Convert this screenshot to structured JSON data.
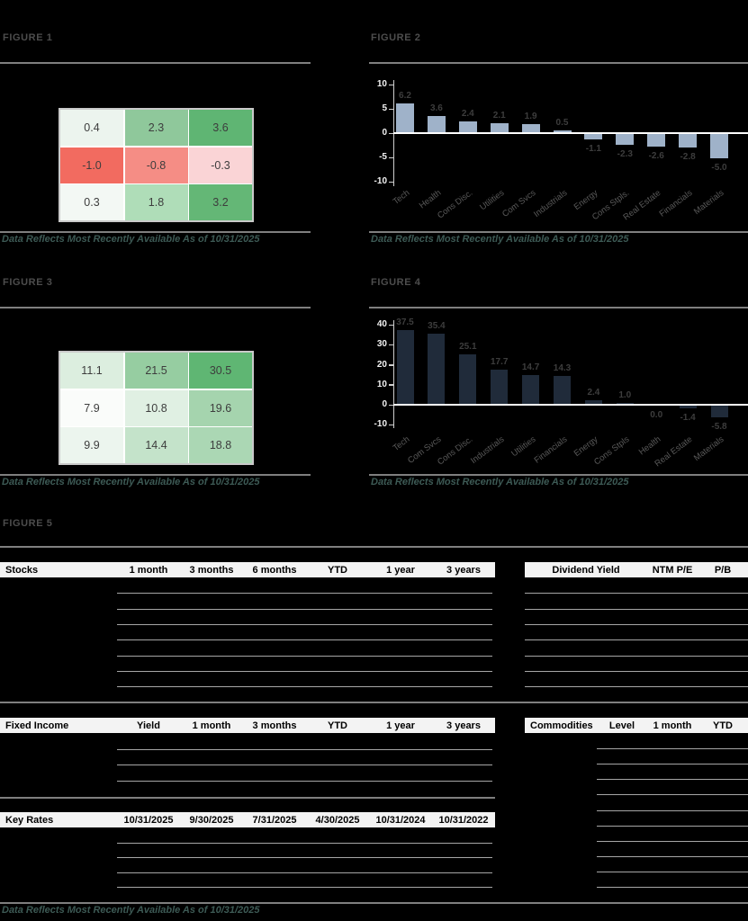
{
  "page": {
    "background": "#000000"
  },
  "figures": {
    "fig1": {
      "title": "FIGURE 1",
      "footnote": "Data Reflects Most Recently Available As of 10/31/2025"
    },
    "fig2": {
      "title": "FIGURE 2",
      "footnote": "Data Reflects Most Recently Available As of 10/31/2025"
    },
    "fig3": {
      "title": "FIGURE 3",
      "footnote": "Data Reflects Most Recently Available As of 10/31/2025"
    },
    "fig4": {
      "title": "FIGURE 4",
      "footnote": "Data Reflects Most Recently Available As of 10/31/2025"
    },
    "fig5": {
      "title": "FIGURE 5",
      "footnote": "Data Reflects Most Recently Available As of 10/31/2025"
    }
  },
  "chart_data": [
    {
      "id": "fig1_heatmap",
      "type": "heatmap",
      "title": "FIGURE 1",
      "rows": [
        [
          "0.4",
          "2.3",
          "3.6"
        ],
        [
          "-1.0",
          "-0.8",
          "-0.3"
        ],
        [
          "0.3",
          "1.8",
          "3.2"
        ]
      ],
      "cell_colors": [
        [
          "#ECF4EE",
          "#8FC89B",
          "#5FB573"
        ],
        [
          "#F26B60",
          "#F58D85",
          "#FAD4D6"
        ],
        [
          "#F3F8F4",
          "#AFDDB8",
          "#64B776"
        ]
      ]
    },
    {
      "id": "fig2_bar",
      "type": "bar",
      "title": "FIGURE 2",
      "categories": [
        "Tech",
        "Health",
        "Cons Disc.",
        "Utilities",
        "Com Svcs",
        "Industrials",
        "Energy",
        "Cons Stpls.",
        "Real Estate",
        "Financials",
        "Materials"
      ],
      "values": [
        6.2,
        3.6,
        2.4,
        2.1,
        1.9,
        0.5,
        -1.1,
        -2.3,
        -2.6,
        -2.8,
        -5.0
      ],
      "ylim": [
        -10,
        10
      ],
      "yticks": [
        10,
        5,
        0,
        -5,
        -10
      ],
      "bar_color": "#9FB2C9",
      "grid": false,
      "legend": "none"
    },
    {
      "id": "fig3_heatmap",
      "type": "heatmap",
      "title": "FIGURE 3",
      "rows": [
        [
          "11.1",
          "21.5",
          "30.5"
        ],
        [
          "7.9",
          "10.8",
          "19.6"
        ],
        [
          "9.9",
          "14.4",
          "18.8"
        ]
      ],
      "cell_colors": [
        [
          "#DCEEDF",
          "#96CDA1",
          "#5FB673"
        ],
        [
          "#FAFCFA",
          "#E0F0E3",
          "#A5D4AE"
        ],
        [
          "#ECF5EE",
          "#C4E3CA",
          "#ABD7B4"
        ]
      ]
    },
    {
      "id": "fig4_bar",
      "type": "bar",
      "title": "FIGURE 4",
      "categories": [
        "Tech",
        "Com Svcs",
        "Cons Disc.",
        "Industrials",
        "Utilities",
        "Financials",
        "Energy",
        "Cons Stpls",
        "Health",
        "Real Estate",
        "Materials"
      ],
      "values": [
        37.5,
        35.4,
        25.1,
        17.7,
        14.7,
        14.3,
        2.4,
        1.0,
        0.0,
        -1.4,
        -5.8
      ],
      "ylim": [
        -10,
        40
      ],
      "yticks": [
        40,
        30,
        20,
        10,
        0,
        -10
      ],
      "bar_color": "#202B3A",
      "grid": false,
      "legend": "none"
    }
  ],
  "tables": {
    "stocks": {
      "header": [
        "Stocks",
        "1 month",
        "3 months",
        "6 months",
        "YTD",
        "1 year",
        "3 years"
      ],
      "visible_body_rows": 8
    },
    "dividend": {
      "header": [
        "Dividend Yield",
        "NTM P/E",
        "P/B"
      ],
      "visible_body_rows": 8
    },
    "fixed_income": {
      "header": [
        "Fixed Income",
        "Yield",
        "1 month",
        "3 months",
        "YTD",
        "1 year",
        "3 years"
      ],
      "visible_body_rows": 4
    },
    "commodities": {
      "header": [
        "Commodities",
        "Level",
        "1 month",
        "YTD"
      ],
      "visible_body_rows": 11
    },
    "key_rates": {
      "header": [
        "Key Rates",
        "10/31/2025",
        "9/30/2025",
        "7/31/2025",
        "4/30/2025",
        "10/31/2024",
        "10/31/2022"
      ],
      "visible_body_rows": 5
    }
  },
  "colors": {
    "figure_title": "#4D4D4D",
    "footnote": "#3D5A55",
    "section_rule": "#7F7F7F",
    "table_row_line": "#A6A6A6",
    "table_header_bg": "#F3F3F3",
    "table_header_text": "#000000",
    "axis_tick_text": "#F2F2F2",
    "zero_line": "#FFFFFF",
    "bar_value_label": "#3D3D3D",
    "category_label": "#595959",
    "fig2_bar": "#9FB2C9",
    "fig4_bar": "#202B3A"
  }
}
